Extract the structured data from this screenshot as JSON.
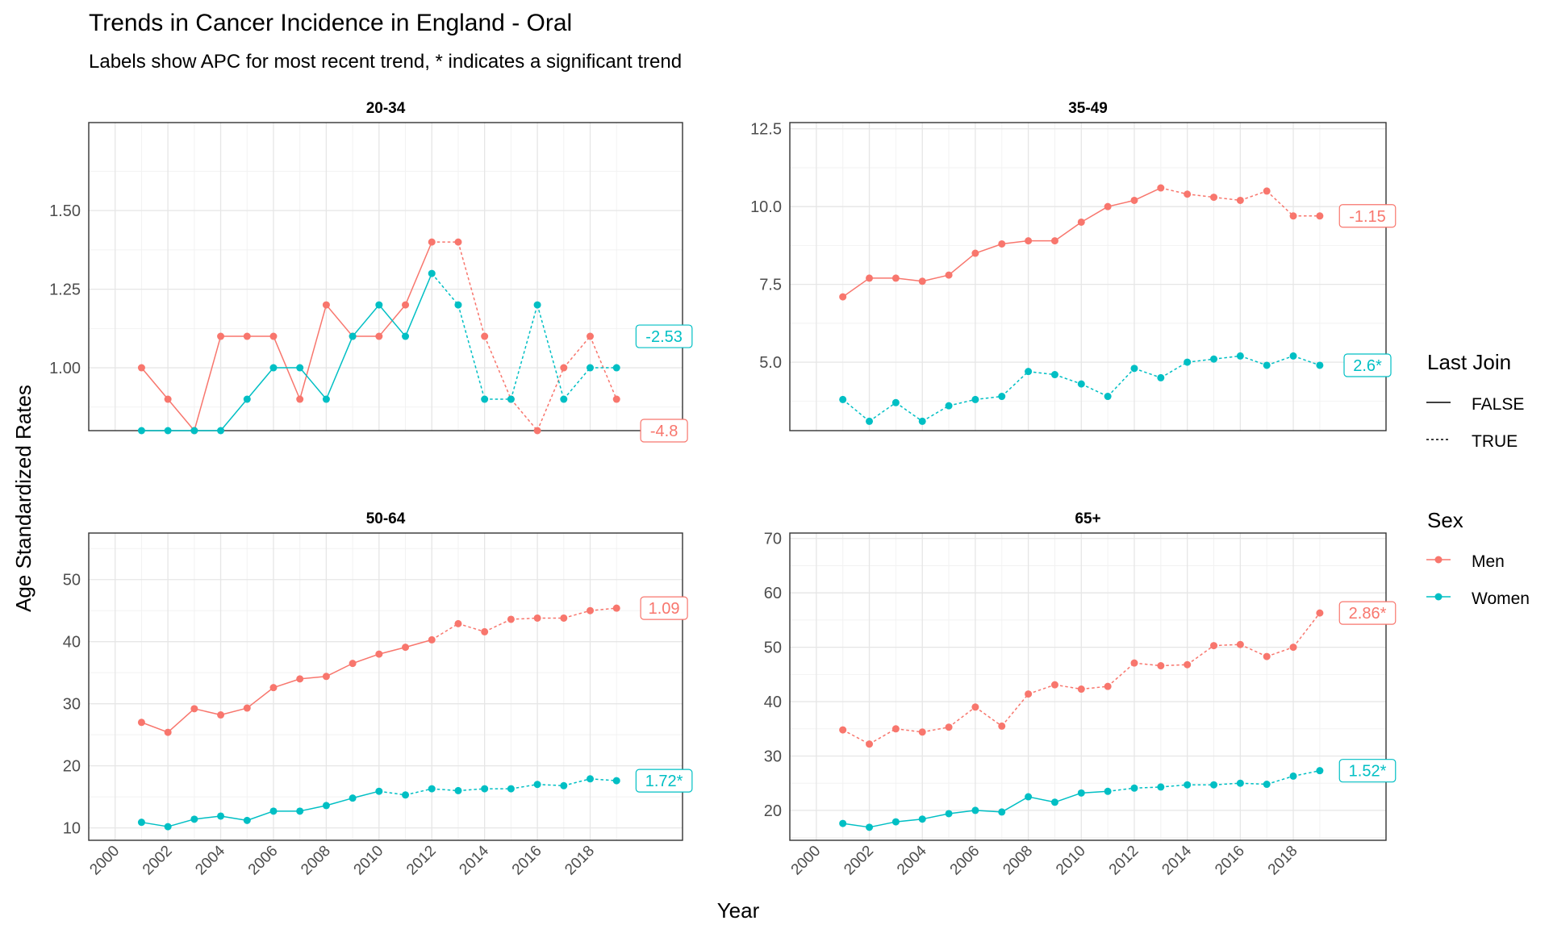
{
  "title": "Trends in Cancer Incidence in England - Oral",
  "subtitle": "Labels show APC for most recent trend, * indicates a significant trend",
  "xlabel": "Year",
  "ylabel": "Age Standardized Rates",
  "legend_linetype": {
    "title": "Last Join",
    "items": [
      {
        "label": "FALSE",
        "dash": "solid"
      },
      {
        "label": "TRUE",
        "dash": "dotted"
      }
    ]
  },
  "legend_sex": {
    "title": "Sex",
    "items": [
      {
        "label": "Men",
        "color": "#F8766D"
      },
      {
        "label": "Women",
        "color": "#00BFC4"
      }
    ]
  },
  "colors": {
    "men": "#F8766D",
    "women": "#00BFC4"
  },
  "chart_data": [
    {
      "type": "line",
      "panel": "20-34",
      "xlim": [
        1999,
        2021.5
      ],
      "ylim": [
        0.8,
        1.78
      ],
      "x_ticks": [
        2000,
        2002,
        2004,
        2006,
        2008,
        2010,
        2012,
        2014,
        2016,
        2018
      ],
      "y_ticks": [
        1.0,
        1.25,
        1.5
      ],
      "y_tick_labels": [
        "1.00",
        "1.25",
        "1.50"
      ],
      "show_x_labels": false,
      "series": [
        {
          "name": "Men",
          "x": [
            2001,
            2002,
            2003,
            2004,
            2005,
            2006,
            2007,
            2008,
            2009,
            2010,
            2011,
            2012,
            2013,
            2014,
            2015,
            2016,
            2017,
            2018,
            2019
          ],
          "y": [
            1.0,
            0.9,
            0.8,
            1.1,
            1.1,
            1.1,
            0.9,
            1.2,
            1.1,
            1.1,
            1.2,
            1.4,
            1.4,
            1.1,
            0.9,
            0.8,
            1.0,
            1.1,
            0.9
          ],
          "last_join_start": 2012,
          "apc_label": "-4.8",
          "label_y": 0.8
        },
        {
          "name": "Women",
          "x": [
            2001,
            2002,
            2003,
            2004,
            2005,
            2006,
            2007,
            2008,
            2009,
            2010,
            2011,
            2012,
            2013,
            2014,
            2015,
            2016,
            2017,
            2018,
            2019
          ],
          "y": [
            0.8,
            0.8,
            0.8,
            0.8,
            0.9,
            1.0,
            1.0,
            0.9,
            1.1,
            1.2,
            1.1,
            1.3,
            1.2,
            0.9,
            0.9,
            1.2,
            0.9,
            1.0,
            1.0
          ],
          "last_join_start": 2012,
          "apc_label": "-2.53",
          "label_y": 1.1
        }
      ]
    },
    {
      "type": "line",
      "panel": "35-49",
      "xlim": [
        1999,
        2021.5
      ],
      "ylim": [
        2.8,
        12.7
      ],
      "x_ticks": [
        2000,
        2002,
        2004,
        2006,
        2008,
        2010,
        2012,
        2014,
        2016,
        2018
      ],
      "y_ticks": [
        5.0,
        7.5,
        10.0,
        12.5
      ],
      "y_tick_labels": [
        "5.0",
        "7.5",
        "10.0",
        "12.5"
      ],
      "show_x_labels": false,
      "series": [
        {
          "name": "Men",
          "x": [
            2001,
            2002,
            2003,
            2004,
            2005,
            2006,
            2007,
            2008,
            2009,
            2010,
            2011,
            2012,
            2013,
            2014,
            2015,
            2016,
            2017,
            2018,
            2019
          ],
          "y": [
            7.1,
            7.7,
            7.7,
            7.6,
            7.8,
            8.5,
            8.8,
            8.9,
            8.9,
            9.5,
            10.0,
            10.2,
            10.6,
            10.4,
            10.3,
            10.2,
            10.5,
            9.7,
            9.7
          ],
          "last_join_start": 2013,
          "apc_label": "-1.15",
          "label_y": 9.7
        },
        {
          "name": "Women",
          "x": [
            2001,
            2002,
            2003,
            2004,
            2005,
            2006,
            2007,
            2008,
            2009,
            2010,
            2011,
            2012,
            2013,
            2014,
            2015,
            2016,
            2017,
            2018,
            2019
          ],
          "y": [
            3.8,
            3.1,
            3.7,
            3.1,
            3.6,
            3.8,
            3.9,
            4.7,
            4.6,
            4.3,
            3.9,
            4.8,
            4.5,
            5.0,
            5.1,
            5.2,
            4.9,
            5.2,
            4.9
          ],
          "last_join_start": 2001,
          "apc_label": "2.6*",
          "label_y": 4.9
        }
      ]
    },
    {
      "type": "line",
      "panel": "50-64",
      "xlim": [
        1999,
        2021.5
      ],
      "ylim": [
        8.0,
        57.5
      ],
      "x_ticks": [
        2000,
        2002,
        2004,
        2006,
        2008,
        2010,
        2012,
        2014,
        2016,
        2018
      ],
      "y_ticks": [
        10,
        20,
        30,
        40,
        50
      ],
      "y_tick_labels": [
        "10",
        "20",
        "30",
        "40",
        "50"
      ],
      "show_x_labels": true,
      "series": [
        {
          "name": "Men",
          "x": [
            2001,
            2002,
            2003,
            2004,
            2005,
            2006,
            2007,
            2008,
            2009,
            2010,
            2011,
            2012,
            2013,
            2014,
            2015,
            2016,
            2017,
            2018,
            2019
          ],
          "y": [
            27.0,
            25.4,
            29.2,
            28.2,
            29.3,
            32.6,
            34.0,
            34.4,
            36.5,
            38.0,
            39.1,
            40.3,
            42.9,
            41.6,
            43.6,
            43.8,
            43.8,
            45.0,
            45.4
          ],
          "last_join_start": 2012,
          "apc_label": "1.09",
          "label_y": 45.4
        },
        {
          "name": "Women",
          "x": [
            2001,
            2002,
            2003,
            2004,
            2005,
            2006,
            2007,
            2008,
            2009,
            2010,
            2011,
            2012,
            2013,
            2014,
            2015,
            2016,
            2017,
            2018,
            2019
          ],
          "y": [
            10.9,
            10.2,
            11.4,
            11.9,
            11.2,
            12.7,
            12.7,
            13.6,
            14.8,
            15.9,
            15.3,
            16.3,
            16.0,
            16.3,
            16.3,
            17.0,
            16.8,
            17.9,
            17.6
          ],
          "last_join_start": 2010,
          "apc_label": "1.72*",
          "label_y": 17.6
        }
      ]
    },
    {
      "type": "line",
      "panel": "65+",
      "xlim": [
        1999,
        2021.5
      ],
      "ylim": [
        14.5,
        71.0
      ],
      "x_ticks": [
        2000,
        2002,
        2004,
        2006,
        2008,
        2010,
        2012,
        2014,
        2016,
        2018
      ],
      "y_ticks": [
        20,
        30,
        40,
        50,
        60,
        70
      ],
      "y_tick_labels": [
        "20",
        "30",
        "40",
        "50",
        "60",
        "70"
      ],
      "show_x_labels": true,
      "series": [
        {
          "name": "Men",
          "x": [
            2001,
            2002,
            2003,
            2004,
            2005,
            2006,
            2007,
            2008,
            2009,
            2010,
            2011,
            2012,
            2013,
            2014,
            2015,
            2016,
            2017,
            2018,
            2019
          ],
          "y": [
            34.8,
            32.2,
            35.0,
            34.4,
            35.3,
            39.0,
            35.5,
            41.4,
            43.1,
            42.3,
            42.8,
            47.1,
            46.6,
            46.8,
            50.3,
            50.5,
            48.3,
            50.0,
            56.3
          ],
          "last_join_start": 2001,
          "apc_label": "2.86*",
          "label_y": 56.3
        },
        {
          "name": "Women",
          "x": [
            2001,
            2002,
            2003,
            2004,
            2005,
            2006,
            2007,
            2008,
            2009,
            2010,
            2011,
            2012,
            2013,
            2014,
            2015,
            2016,
            2017,
            2018,
            2019
          ],
          "y": [
            17.6,
            16.9,
            17.9,
            18.4,
            19.4,
            20.0,
            19.7,
            22.5,
            21.5,
            23.2,
            23.5,
            24.1,
            24.3,
            24.7,
            24.7,
            25.0,
            24.8,
            26.3,
            27.3
          ],
          "last_join_start": 2011,
          "apc_label": "1.52*",
          "label_y": 27.3
        }
      ]
    }
  ]
}
